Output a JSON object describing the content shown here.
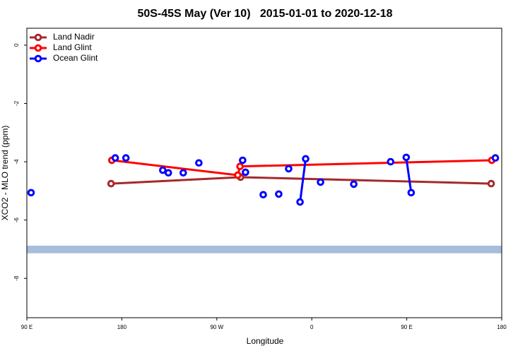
{
  "chart_data": {
    "type": "line",
    "title": "50S-45S May (Ver 10)   2015-01-01 to 2020-12-18",
    "x_label": "Longitude",
    "y_label": "XCO2 - MLO trend (ppm)",
    "xlim": [
      90,
      540
    ],
    "xticks": [
      {
        "value": 90,
        "label": "90 E"
      },
      {
        "value": 180,
        "label": "180"
      },
      {
        "value": 270,
        "label": "90 W"
      },
      {
        "value": 360,
        "label": "0"
      },
      {
        "value": 450,
        "label": "90 E"
      },
      {
        "value": 540,
        "label": "180"
      }
    ],
    "ylim": [
      -9.35,
      0.58
    ],
    "yticks": [
      0,
      -2,
      -4,
      -6,
      -8
    ],
    "legend": "top-left",
    "band": {
      "y": [
        -7.14,
        -6.88
      ],
      "color": "#a6bddb"
    },
    "series": [
      {
        "name": "Land Nadir",
        "color": "#a52a2a",
        "x": [
          169.8,
          292.5,
          530
        ],
        "values": [
          -4.75,
          -4.53,
          -4.75
        ]
      },
      {
        "name": "Land Glint",
        "color": "#ff0000",
        "x": [
          170.5,
          289.9,
          292,
          530.6
        ],
        "values": [
          -3.95,
          -4.46,
          -4.16,
          -3.95
        ]
      },
      {
        "name": "Ocean Glint",
        "color": "#0000ff",
        "x": [
          94,
          null,
          173.8,
          null,
          183.9,
          null,
          218.8,
          null,
          224.1,
          null,
          238.2,
          null,
          253,
          null,
          294.5,
          null,
          297.2,
          null,
          314,
          null,
          328.7,
          null,
          338.1,
          null,
          348.9,
          354.2,
          null,
          368.3,
          null,
          399.8,
          null,
          434.7,
          null,
          449.5,
          454.2,
          null,
          534
        ],
        "values": [
          -5.06,
          null,
          -3.87,
          null,
          -3.87,
          null,
          -4.29,
          null,
          -4.38,
          null,
          -4.38,
          null,
          -4.04,
          null,
          -3.95,
          null,
          -4.36,
          null,
          -5.13,
          null,
          -5.11,
          null,
          -4.24,
          null,
          -5.38,
          -3.9,
          null,
          -4.7,
          null,
          -4.77,
          null,
          -4.0,
          null,
          -3.85,
          -5.06,
          null,
          -3.87
        ]
      }
    ]
  }
}
